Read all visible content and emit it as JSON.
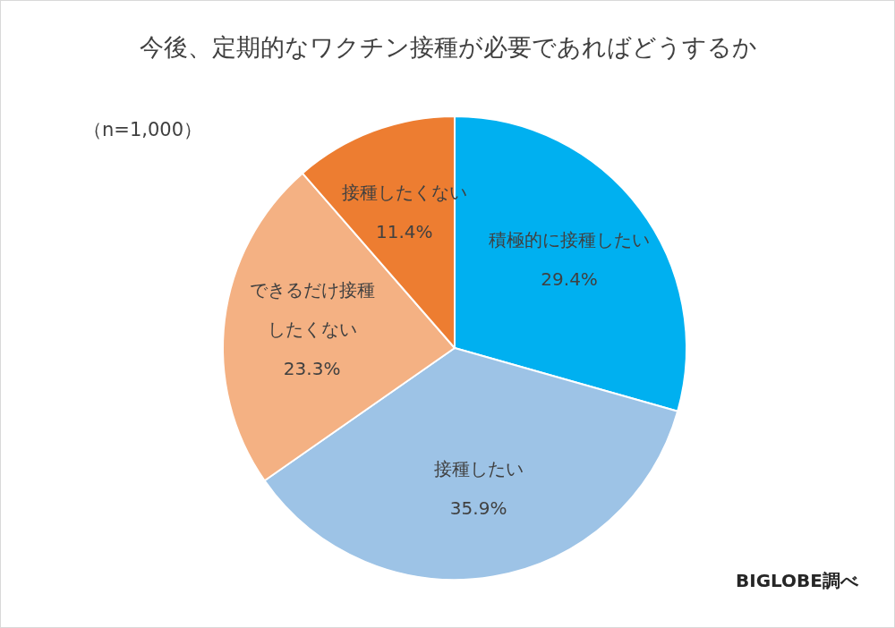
{
  "chart_data": {
    "type": "pie",
    "title": "今後、定期的なワクチン接種が必要であればどうするか",
    "annotations": [
      "（n=1,000）"
    ],
    "source": "BIGLOBE調べ",
    "categories": [
      "積極的に接種したい",
      "接種したい",
      "できるだけ接種\nしたくない",
      "接種したくない"
    ],
    "values": [
      29.4,
      35.9,
      23.3,
      11.4
    ],
    "value_labels": [
      "29.4%",
      "35.9%",
      "23.3%",
      "11.4%"
    ],
    "colors": [
      "#00b0f0",
      "#9dc3e6",
      "#f4b183",
      "#ed7d31"
    ],
    "data_labels": true
  }
}
